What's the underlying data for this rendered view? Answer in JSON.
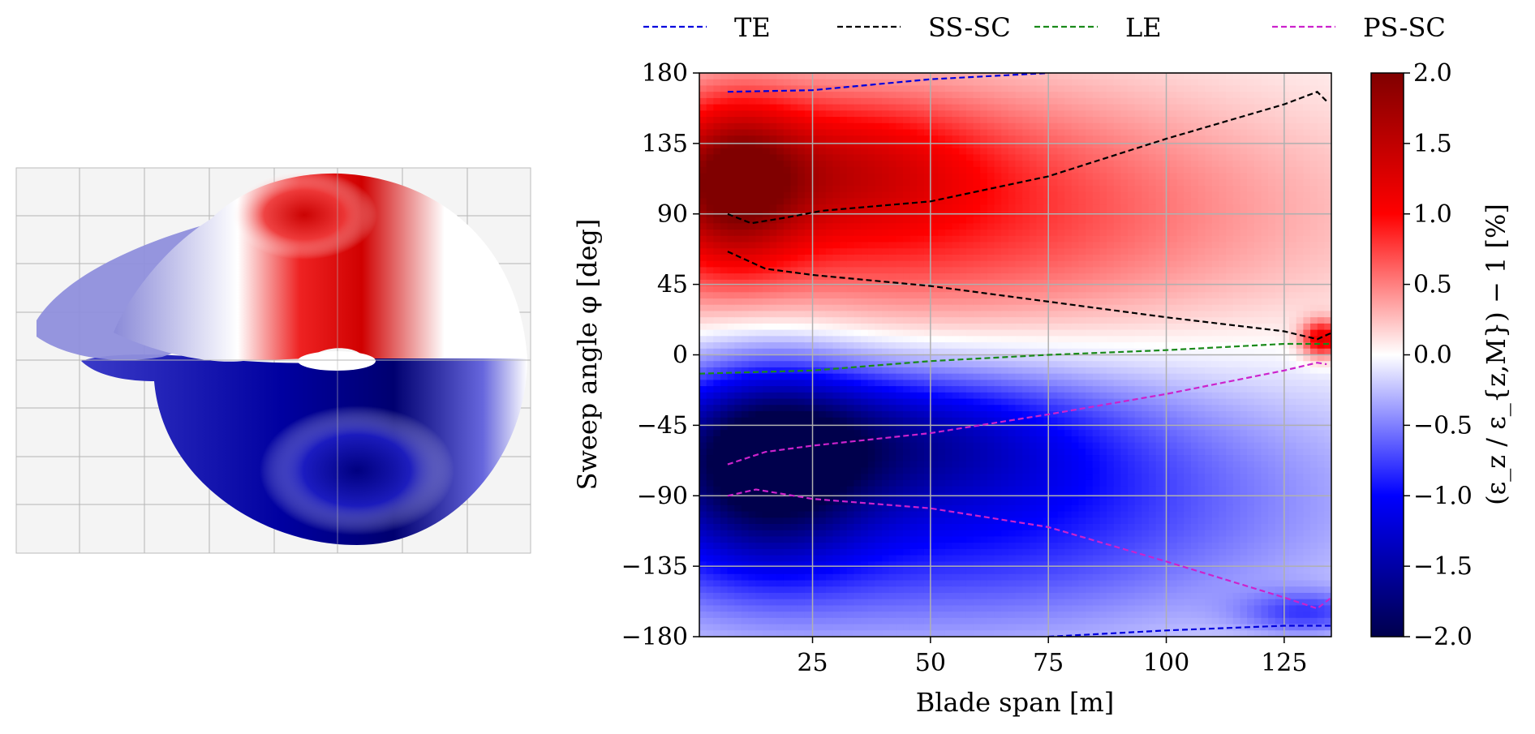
{
  "chart_data": {
    "type": "heatmap",
    "xlabel": "Blade span [m]",
    "ylabel": "Sweep angle φ [deg]",
    "xlim": [
      1,
      135
    ],
    "ylim": [
      -180,
      180
    ],
    "x_ticks": [
      "25",
      "50",
      "75",
      "100",
      "125"
    ],
    "x_tick_values": [
      25,
      50,
      75,
      100,
      125
    ],
    "y_ticks": [
      "180",
      "135",
      "90",
      "45",
      "0",
      "−45",
      "−90",
      "−135",
      "−180"
    ],
    "y_tick_values": [
      180,
      135,
      90,
      45,
      0,
      -45,
      -90,
      -135,
      -180
    ],
    "grid": true,
    "colorbar": {
      "label": "(ε_z / ε_{z,M}) − 1 [%]",
      "range": [
        -2.0,
        2.0
      ],
      "ticks": [
        "2.0",
        "1.5",
        "1.0",
        "0.5",
        "0.0",
        "−0.5",
        "−1.0",
        "−1.5",
        "−2.0"
      ],
      "tick_values": [
        2.0,
        1.5,
        1.0,
        0.5,
        0.0,
        -0.5,
        -1.0,
        -1.5,
        -2.0
      ],
      "colormap": "seismic",
      "colors": [
        "#00004c",
        "#0000ff",
        "#ffffff",
        "#ff0000",
        "#800000"
      ]
    },
    "legend_position": "top",
    "series": [
      {
        "name": "TE",
        "color": "#0000dd",
        "style": "dashed",
        "x": [
          7,
          25,
          50,
          75
        ],
        "y": [
          168,
          169,
          176,
          180
        ]
      },
      {
        "name": "TE",
        "color": "#0000dd",
        "style": "dashed",
        "legend": false,
        "x": [
          75,
          100,
          125,
          135
        ],
        "y": [
          -180,
          -176,
          -173,
          -173
        ]
      },
      {
        "name": "SS-SC",
        "color": "#000000",
        "style": "dashed",
        "x": [
          7,
          12,
          20,
          27,
          50,
          75,
          100,
          125,
          132,
          134
        ],
        "y": [
          90,
          84,
          88,
          92,
          98,
          114,
          138,
          160,
          168,
          162
        ]
      },
      {
        "name": "SS-SC",
        "color": "#000000",
        "style": "dashed",
        "legend": false,
        "x": [
          7,
          15,
          25,
          50,
          75,
          100,
          125,
          132,
          135
        ],
        "y": [
          66,
          55,
          51,
          44,
          34,
          24,
          15,
          10,
          14
        ]
      },
      {
        "name": "LE",
        "color": "#1a8a1a",
        "style": "dashed",
        "x": [
          1,
          25,
          50,
          75,
          100,
          125,
          135
        ],
        "y": [
          -12,
          -10,
          -4,
          0,
          3,
          7,
          7
        ]
      },
      {
        "name": "PS-SC",
        "color": "#cc22cc",
        "style": "dashed",
        "x": [
          7,
          15,
          25,
          50,
          75,
          100,
          125,
          132,
          134
        ],
        "y": [
          -70,
          -62,
          -58,
          -50,
          -38,
          -25,
          -10,
          -5,
          -6
        ]
      },
      {
        "name": "PS-SC",
        "color": "#cc22cc",
        "style": "dashed",
        "legend": false,
        "x": [
          7,
          13,
          25,
          50,
          75,
          100,
          125,
          132,
          135
        ],
        "y": [
          -90,
          -86,
          -92,
          -98,
          -110,
          -132,
          -155,
          -162,
          -155
        ]
      }
    ],
    "field": {
      "description_free": true,
      "kernels": [
        {
          "x": 8,
          "y": 110,
          "sx": 10,
          "sy": 35,
          "amp": 1.3
        },
        {
          "x": 30,
          "y": 120,
          "sx": 20,
          "sy": 30,
          "amp": 0.7
        },
        {
          "x": 55,
          "y": 95,
          "sx": 40,
          "sy": 60,
          "amp": 0.45
        },
        {
          "x": 133,
          "y": 10,
          "sx": 3,
          "sy": 8,
          "amp": 1.2
        },
        {
          "x": 15,
          "y": -70,
          "sx": 15,
          "sy": 45,
          "amp": -1.3
        },
        {
          "x": 40,
          "y": -50,
          "sx": 30,
          "sy": 30,
          "amp": -0.8
        },
        {
          "x": 60,
          "y": -100,
          "sx": 45,
          "sy": 60,
          "amp": -0.6
        },
        {
          "x": 130,
          "y": -165,
          "sx": 10,
          "sy": 10,
          "amp": -0.6
        }
      ]
    }
  },
  "left_image": {
    "description": "",
    "colors": {
      "panel": "#f4f4f4",
      "grid": "#aaaaaa"
    }
  }
}
